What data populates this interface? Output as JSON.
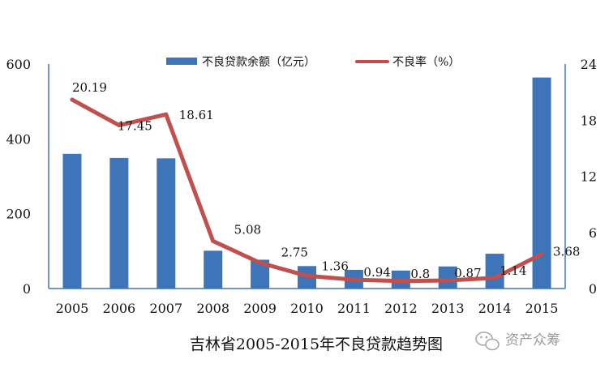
{
  "chart_data": {
    "type": "bar",
    "title": "吉林省2005-2015年不良贷款趋势图",
    "categories": [
      "2005",
      "2006",
      "2007",
      "2008",
      "2009",
      "2010",
      "2011",
      "2012",
      "2013",
      "2014",
      "2015"
    ],
    "series": [
      {
        "name": "不良贷款余额（亿元）",
        "kind": "bar",
        "axis": "left",
        "color": "#3e74b8",
        "values": [
          360,
          349,
          348,
          101,
          77,
          60,
          50,
          48,
          59,
          93,
          564
        ]
      },
      {
        "name": "不良率（%）",
        "kind": "line",
        "axis": "right",
        "color": "#c0504d",
        "values": [
          20.19,
          17.45,
          18.61,
          5.08,
          2.75,
          1.36,
          0.94,
          0.8,
          0.87,
          1.14,
          3.68
        ],
        "labels": [
          "20.19",
          "17.45",
          "18.61",
          "5.08",
          "2.75",
          "1.36",
          "0.94",
          "0.8",
          "0.87",
          "1.14",
          "3.68"
        ]
      }
    ],
    "y_left": {
      "min": 0,
      "max": 600,
      "ticks": [
        "0",
        "200",
        "400",
        "600"
      ]
    },
    "y_right": {
      "min": 0,
      "max": 24,
      "ticks": [
        "0",
        "6",
        "12",
        "18",
        "24"
      ]
    },
    "legend_position": "top",
    "grid": false
  },
  "watermark": {
    "icon": "wechat-icon",
    "text": "资产众筹"
  }
}
